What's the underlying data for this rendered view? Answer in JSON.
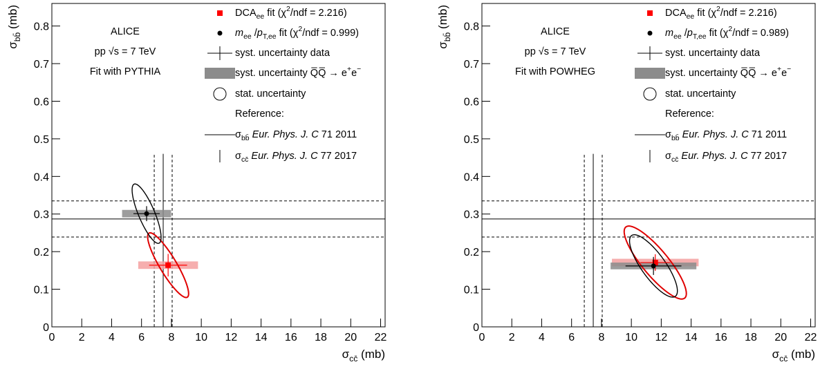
{
  "chart_data": [
    {
      "type": "scatter",
      "annotations": [
        "ALICE",
        "pp √s = 7 TeV",
        "Fit with PYTHIA"
      ],
      "xlabel": [
        "σ",
        {
          "sub": "cc̄"
        },
        " (mb)"
      ],
      "ylabel": [
        "σ",
        {
          "sub": "bb̄"
        },
        " (mb)"
      ],
      "xlim": [
        0,
        22.3
      ],
      "ylim": [
        0,
        0.86
      ],
      "xticks": [
        0,
        2,
        4,
        6,
        8,
        10,
        12,
        14,
        16,
        18,
        20,
        22
      ],
      "yticks": [
        0,
        0.1,
        0.2,
        0.3,
        0.4,
        0.5,
        0.6,
        0.7,
        0.8
      ],
      "series": [
        {
          "name": [
            "DCA",
            {
              "sub": "ee"
            },
            " fit (χ",
            {
              "sup": "2"
            },
            "/ndf = 2.216)"
          ],
          "color": "#ff0000",
          "marker": "square",
          "syst_color": "#f5a0a0",
          "x": [
            7.78
          ],
          "y": [
            0.164
          ],
          "x_err": [
            1.27
          ],
          "y_err": [
            0.03
          ],
          "x_syst": [
            2.0
          ],
          "y_syst": [
            0.01
          ],
          "ellipse": {
            "sx": 1.37,
            "sy": 0.086,
            "rho": -0.88
          }
        },
        {
          "name": [
            {
              "it": "m"
            },
            {
              "sub": "ee"
            },
            " /",
            {
              "it": "p"
            },
            {
              "sub": "T,ee"
            },
            " fit (χ",
            {
              "sup": "2"
            },
            "/ndf = 0.999)"
          ],
          "color": "#000000",
          "marker": "circle",
          "syst_color": "#8c8c8c",
          "x": [
            6.34
          ],
          "y": [
            0.301
          ],
          "x_err": [
            0.88
          ],
          "y_err": [
            0.02
          ],
          "x_syst": [
            1.64
          ],
          "y_syst": [
            0.01
          ],
          "ellipse": {
            "sx": 0.97,
            "sy": 0.079,
            "rho": -0.8
          }
        }
      ],
      "legend_notes": [
        {
          "label": "syst. uncertainty data",
          "symbol": "cross"
        },
        {
          "label": [
            "syst. uncertainty Q̅Q̅ → e",
            {
              "sup": "+"
            },
            "e",
            {
              "sup": "−"
            }
          ],
          "symbol": "box",
          "color": "#8c8c8c"
        },
        {
          "label": "stat. uncertainty",
          "symbol": "circle"
        },
        {
          "label": "Reference:"
        }
      ],
      "references": [
        {
          "name": [
            "σ",
            {
              "sub": "bb̄"
            },
            " ",
            {
              "it": "Eur. Phys. J. C"
            },
            " 71 2011"
          ],
          "orientation": "horizontal",
          "value": 0.287,
          "error": 0.048
        },
        {
          "name": [
            "σ",
            {
              "sub": "cc̄"
            },
            " ",
            {
              "it": "Eur. Phys. J. C"
            },
            " 77 2017"
          ],
          "orientation": "vertical",
          "value": 7.45,
          "error": 0.6,
          "extent": 0.46
        }
      ]
    },
    {
      "type": "scatter",
      "annotations": [
        "ALICE",
        "pp √s = 7 TeV",
        "Fit with POWHEG"
      ],
      "xlabel": [
        "σ",
        {
          "sub": "cc̄"
        },
        " (mb)"
      ],
      "ylabel": [
        "σ",
        {
          "sub": "bb̄"
        },
        " (mb)"
      ],
      "xlim": [
        0,
        22.3
      ],
      "ylim": [
        0,
        0.86
      ],
      "xticks": [
        0,
        2,
        4,
        6,
        8,
        10,
        12,
        14,
        16,
        18,
        20,
        22
      ],
      "yticks": [
        0,
        0.1,
        0.2,
        0.3,
        0.4,
        0.5,
        0.6,
        0.7,
        0.8
      ],
      "series": [
        {
          "name": [
            "DCA",
            {
              "sub": "ee"
            },
            " fit (χ",
            {
              "sup": "2"
            },
            "/ndf = 2.216)"
          ],
          "color": "#ff0000",
          "marker": "square",
          "syst_color": "#f5a0a0",
          "x": [
            11.6
          ],
          "y": [
            0.171
          ],
          "x_err": [
            1.0
          ],
          "y_err": [
            0.022
          ],
          "x_syst": [
            2.9
          ],
          "y_syst": [
            0.01
          ],
          "ellipse": {
            "sx": 2.08,
            "sy": 0.097,
            "rho": -0.85
          }
        },
        {
          "name": [
            {
              "it": "m"
            },
            {
              "sub": "ee"
            },
            " /",
            {
              "it": "p"
            },
            {
              "sub": "T,ee"
            },
            " fit (χ",
            {
              "sup": "2"
            },
            "/ndf = 0.989)"
          ],
          "color": "#000000",
          "marker": "circle",
          "syst_color": "#8c8c8c",
          "x": [
            11.48
          ],
          "y": [
            0.162
          ],
          "x_err": [
            1.87
          ],
          "y_err": [
            0.024
          ],
          "x_syst": [
            2.87
          ],
          "y_syst": [
            0.009
          ],
          "ellipse": {
            "sx": 1.6,
            "sy": 0.083,
            "rho": -0.8
          }
        }
      ],
      "legend_notes": [
        {
          "label": "syst. uncertainty data",
          "symbol": "cross"
        },
        {
          "label": [
            "syst. uncertainty Q̅Q̅ → e",
            {
              "sup": "+"
            },
            "e",
            {
              "sup": "−"
            }
          ],
          "symbol": "box",
          "color": "#8c8c8c"
        },
        {
          "label": "stat. uncertainty",
          "symbol": "circle"
        },
        {
          "label": "Reference:"
        }
      ],
      "references": [
        {
          "name": [
            "σ",
            {
              "sub": "bb̄"
            },
            " ",
            {
              "it": "Eur. Phys. J. C"
            },
            " 71 2011"
          ],
          "orientation": "horizontal",
          "value": 0.287,
          "error": 0.048
        },
        {
          "name": [
            "σ",
            {
              "sub": "cc̄"
            },
            " ",
            {
              "it": "Eur. Phys. J. C"
            },
            " 77 2017"
          ],
          "orientation": "vertical",
          "value": 7.45,
          "error": 0.6,
          "extent": 0.46
        }
      ]
    }
  ]
}
